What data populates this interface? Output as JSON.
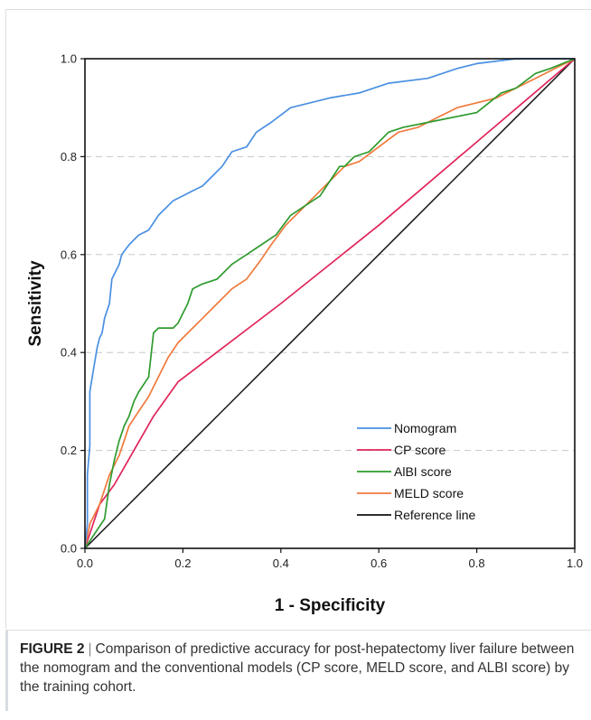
{
  "chart_data": {
    "type": "line",
    "xlabel": "1 - Specificity",
    "ylabel": "Sensitivity",
    "xlim": [
      0,
      1
    ],
    "ylim": [
      0,
      1
    ],
    "xticks": [
      "0.0",
      "0.2",
      "0.4",
      "0.6",
      "0.8",
      "1.0"
    ],
    "yticks": [
      "0.0",
      "0.2",
      "0.4",
      "0.6",
      "0.8",
      "1.0"
    ],
    "grid": "horizontal dashed",
    "legend_position": "bottom-right",
    "series": [
      {
        "name": "Nomogram",
        "color": "#4a90e2",
        "x": [
          0,
          0.005,
          0.005,
          0.01,
          0.01,
          0.015,
          0.02,
          0.025,
          0.03,
          0.035,
          0.04,
          0.05,
          0.055,
          0.06,
          0.07,
          0.075,
          0.09,
          0.1,
          0.11,
          0.13,
          0.15,
          0.16,
          0.18,
          0.2,
          0.22,
          0.24,
          0.26,
          0.28,
          0.3,
          0.33,
          0.35,
          0.38,
          0.42,
          0.46,
          0.5,
          0.56,
          0.62,
          0.7,
          0.76,
          0.8,
          0.88,
          1.0
        ],
        "y": [
          0,
          0.05,
          0.15,
          0.21,
          0.32,
          0.35,
          0.38,
          0.41,
          0.43,
          0.44,
          0.47,
          0.5,
          0.55,
          0.56,
          0.58,
          0.6,
          0.62,
          0.63,
          0.64,
          0.65,
          0.68,
          0.69,
          0.71,
          0.72,
          0.73,
          0.74,
          0.76,
          0.78,
          0.81,
          0.82,
          0.85,
          0.87,
          0.9,
          0.91,
          0.92,
          0.93,
          0.95,
          0.96,
          0.98,
          0.99,
          1.0,
          1.0
        ]
      },
      {
        "name": "CP score",
        "color": "#e0255a",
        "x": [
          0,
          0.03,
          0.06,
          0.1,
          0.14,
          0.19,
          0.4,
          0.6,
          0.8,
          1.0
        ],
        "y": [
          0,
          0.09,
          0.13,
          0.2,
          0.27,
          0.34,
          0.5,
          0.66,
          0.83,
          1.0
        ]
      },
      {
        "name": "AlBI score",
        "color": "#2e9b2e",
        "x": [
          0,
          0.02,
          0.04,
          0.05,
          0.06,
          0.07,
          0.08,
          0.09,
          0.1,
          0.11,
          0.13,
          0.14,
          0.15,
          0.16,
          0.18,
          0.19,
          0.2,
          0.21,
          0.22,
          0.24,
          0.27,
          0.3,
          0.33,
          0.36,
          0.39,
          0.42,
          0.45,
          0.48,
          0.5,
          0.52,
          0.53,
          0.55,
          0.58,
          0.62,
          0.65,
          0.7,
          0.75,
          0.8,
          0.85,
          0.88,
          0.92,
          0.95,
          1.0
        ],
        "y": [
          0,
          0.03,
          0.06,
          0.13,
          0.18,
          0.22,
          0.25,
          0.27,
          0.3,
          0.32,
          0.35,
          0.44,
          0.45,
          0.45,
          0.45,
          0.46,
          0.48,
          0.5,
          0.53,
          0.54,
          0.55,
          0.58,
          0.6,
          0.62,
          0.64,
          0.68,
          0.7,
          0.72,
          0.75,
          0.78,
          0.78,
          0.8,
          0.81,
          0.85,
          0.86,
          0.87,
          0.88,
          0.89,
          0.93,
          0.94,
          0.97,
          0.98,
          1.0
        ]
      },
      {
        "name": "MELD score",
        "color": "#f07a3c",
        "x": [
          0,
          0.01,
          0.03,
          0.05,
          0.07,
          0.08,
          0.09,
          0.11,
          0.13,
          0.15,
          0.17,
          0.19,
          0.21,
          0.24,
          0.27,
          0.3,
          0.33,
          0.36,
          0.38,
          0.41,
          0.44,
          0.47,
          0.5,
          0.53,
          0.56,
          0.6,
          0.64,
          0.68,
          0.72,
          0.76,
          0.8,
          0.84,
          0.88,
          0.92,
          0.96,
          1.0
        ],
        "y": [
          0,
          0.05,
          0.09,
          0.15,
          0.19,
          0.22,
          0.25,
          0.28,
          0.31,
          0.35,
          0.39,
          0.42,
          0.44,
          0.47,
          0.5,
          0.53,
          0.55,
          0.59,
          0.62,
          0.66,
          0.69,
          0.72,
          0.75,
          0.78,
          0.79,
          0.82,
          0.85,
          0.86,
          0.88,
          0.9,
          0.91,
          0.92,
          0.94,
          0.96,
          0.98,
          1.0
        ]
      },
      {
        "name": "Reference line",
        "color": "#111111",
        "x": [
          0,
          1
        ],
        "y": [
          0,
          1
        ]
      }
    ]
  },
  "caption": {
    "label": "FIGURE 2",
    "separator": "|",
    "text": "Comparison of predictive accuracy for post-hepatectomy liver failure between the nomogram and the conventional models (CP score, MELD score, and ALBI score) by the training cohort."
  }
}
